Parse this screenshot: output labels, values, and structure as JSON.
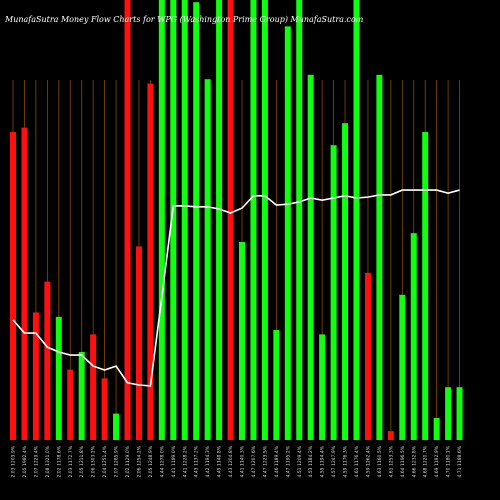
{
  "chart_data": {
    "type": "bar",
    "title": "MunafaSutra  Money Flow  Charts for WPG  (Washington Prime  Group) MunafaSutra.com",
    "categories": [
      "2.03 1203.9%",
      "2.05 1982.4%",
      "2.07 1229.4%",
      "2.08 1321.0%",
      "2.02 1178.6%",
      "2.03 1172.7%",
      "2.05 1211.8%",
      "2.06 1303.2%",
      "2.04 1251.4%",
      "2.07 1285.9%",
      "2.02 1129.0%",
      "2.06 1254.2%",
      "2.05 1248.9%",
      "4.44 1278.0%",
      "4.41 1189.0%",
      "4.41 1228.2%",
      "4.43 1137.2%",
      "4.42 1194.3%",
      "4.45 1148.8%",
      "4.43 1204.8%",
      "4.41 1140.3%",
      "4.47 1207.6%",
      "4.47 1223.5%",
      "4.46 1189.4%",
      "4.47 1195.2%",
      "4.51 1209.4%",
      "4.53 1184.2%",
      "4.55 1194.4%",
      "4.57 1247.9%",
      "4.59 1176.3%",
      "4.61 1176.4%",
      "4.59 1262.4%",
      "4.63 1160.5%",
      "4.61 1253.3%",
      "4.64 1196.5%",
      "4.66 1232.8%",
      "4.68 1220.7%",
      "4.69 1192.9%",
      "4.70 1180.1%",
      "4.71 1188.6%"
    ],
    "values": [
      70,
      71,
      29,
      36,
      28,
      16,
      20,
      24,
      14,
      6,
      100,
      44,
      81,
      100,
      100,
      100,
      99.5,
      82,
      100,
      100,
      45,
      100,
      100,
      25,
      94,
      100,
      83,
      24,
      67,
      72,
      100,
      38,
      83,
      2,
      33,
      47,
      70,
      5,
      12,
      12
    ],
    "bar_colors": [
      "#ff1010",
      "#ff1010",
      "#ff1010",
      "#ff1010",
      "#10ff10",
      "#ff1010",
      "#10ff10",
      "#ff1010",
      "#ff1010",
      "#10ff10",
      "#ff1010",
      "#ff1010",
      "#ff1010",
      "#10ff10",
      "#10ff10",
      "#10ff10",
      "#10ff10",
      "#10ff10",
      "#10ff10",
      "#ff1010",
      "#10ff10",
      "#10ff10",
      "#10ff10",
      "#10ff10",
      "#10ff10",
      "#10ff10",
      "#10ff10",
      "#10ff10",
      "#10ff10",
      "#10ff10",
      "#10ff10",
      "#ff1010",
      "#10ff10",
      "#ff1010",
      "#10ff10",
      "#10ff10",
      "#10ff10",
      "#10ff10",
      "#10ff10",
      "#10ff10"
    ],
    "line_values": [
      27.3,
      24.3,
      24.3,
      21.1,
      20,
      19.3,
      19.3,
      16.8,
      15.9,
      16.8,
      13,
      12.5,
      12.3,
      32.5,
      53.2,
      53.2,
      53,
      53,
      52.5,
      51.6,
      52.7,
      55.5,
      55.5,
      53.4,
      53.6,
      54.1,
      55,
      54.5,
      55,
      55.5,
      55,
      55.2,
      55.7,
      55.7,
      56.8,
      56.8,
      56.8,
      56.8,
      56.1,
      56.8
    ],
    "line_color": "#ffffff",
    "ylim": [
      0,
      100
    ]
  }
}
